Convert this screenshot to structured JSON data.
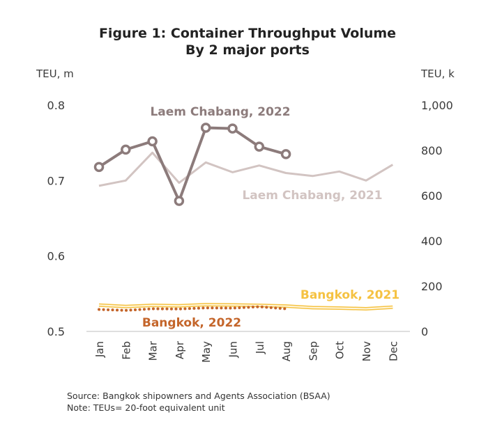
{
  "chart_data": {
    "type": "line",
    "title": "Figure 1: Container Throughput Volume",
    "subtitle": "By 2 major ports",
    "categories": [
      "Jan",
      "Feb",
      "Mar",
      "Apr",
      "May",
      "Jun",
      "Jul",
      "Aug",
      "Sep",
      "Oct",
      "Nov",
      "Dec"
    ],
    "left_axis": {
      "unit": "TEU, m",
      "ylim": [
        0.5,
        0.8
      ],
      "ticks": [
        "0.8",
        "0.7",
        "0.6",
        "0.5"
      ],
      "tick_values": [
        0.8,
        0.7,
        0.6,
        0.5
      ]
    },
    "right_axis": {
      "unit": "TEU, k",
      "ylim": [
        0,
        1000
      ],
      "ticks": [
        "1,000",
        "800",
        "600",
        "400",
        "200",
        "0"
      ],
      "tick_values": [
        1000,
        800,
        600,
        400,
        200,
        0
      ]
    },
    "series": [
      {
        "name": "Laem Chabang, 2022",
        "axis": "left",
        "color": "#8c7b7b",
        "style": "line-markers",
        "values": [
          0.718,
          0.741,
          0.752,
          0.673,
          0.77,
          0.769,
          0.745,
          0.735,
          null,
          null,
          null,
          null
        ]
      },
      {
        "name": "Laem Chabang, 2021",
        "axis": "left",
        "color": "#d2c4c2",
        "style": "line",
        "values": [
          0.693,
          0.7,
          0.737,
          0.697,
          0.724,
          0.711,
          0.72,
          0.71,
          0.706,
          0.712,
          0.7,
          0.721
        ]
      },
      {
        "name": "Bangkok, 2021",
        "axis": "right",
        "color": "#f5c242",
        "style": "double-line",
        "values": [
          116,
          110,
          115,
          113,
          118,
          117,
          115,
          112,
          105,
          103,
          100,
          107
        ]
      },
      {
        "name": "Bangkok, 2022",
        "axis": "right",
        "color": "#c4652a",
        "style": "dotted",
        "values": [
          97,
          93,
          100,
          99,
          104,
          103,
          109,
          100,
          null,
          null,
          null,
          null
        ]
      }
    ],
    "grid": false,
    "legend": "inline labels"
  },
  "footer": {
    "source": "Source: Bangkok shipowners and Agents Association (BSAA)",
    "note": "Note: TEUs= 20-foot equivalent unit"
  }
}
